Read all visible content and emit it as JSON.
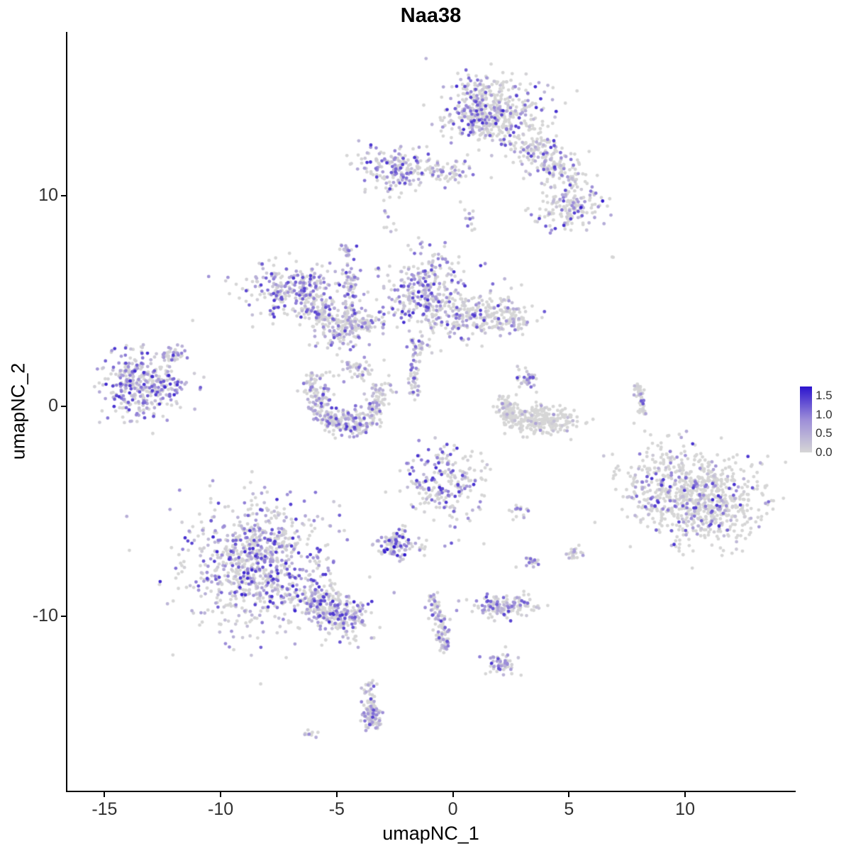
{
  "chart_data": {
    "type": "scatter",
    "title": "Naa38",
    "xlabel": "umapNC_1",
    "ylabel": "umapNC_2",
    "xlim": [
      -16.6,
      14.7
    ],
    "ylim": [
      -18.3,
      17.8
    ],
    "xticks": [
      -15,
      -10,
      -5,
      0,
      5,
      10
    ],
    "yticks": [
      -10,
      0,
      10
    ],
    "grid": false,
    "point_radius_px": 2.4,
    "color_scale": {
      "low": "#D6D6D6",
      "mid": "#9C8DD8",
      "high": "#2C14CE",
      "max": 1.75
    },
    "legend": {
      "position": "right",
      "labels": [
        "1.5",
        "1.0",
        "0.5",
        "0.0"
      ],
      "values": [
        1.5,
        1.0,
        0.5,
        0.0
      ],
      "scale_max": 1.75
    },
    "clusters": [
      {
        "name": "top-main",
        "cx": 1.8,
        "cy": 14.0,
        "sx": 1.0,
        "sy": 0.8,
        "n": 420,
        "expr_frac": 0.45,
        "expr_max": 1.6
      },
      {
        "name": "top-main-left",
        "cx": 0.9,
        "cy": 14.2,
        "sx": 0.35,
        "sy": 0.8,
        "n": 90,
        "expr_frac": 0.7,
        "expr_max": 1.5
      },
      {
        "name": "top-arm",
        "cx": 3.0,
        "cy": 12.8,
        "cx2": 5.3,
        "cy2": 10.6,
        "sx": 0.5,
        "sy": 0.45,
        "n": 230,
        "expr_frac": 0.4,
        "expr_max": 1.5
      },
      {
        "name": "top-arm-end",
        "cx": 5.0,
        "cy": 9.4,
        "sx": 0.75,
        "sy": 0.5,
        "n": 150,
        "expr_frac": 0.5,
        "expr_max": 1.7
      },
      {
        "name": "upper-left",
        "cx": -2.6,
        "cy": 11.3,
        "sx": 0.75,
        "sy": 0.55,
        "n": 170,
        "expr_frac": 0.65,
        "expr_max": 1.5
      },
      {
        "name": "upper-left-arm",
        "cx": -1.6,
        "cy": 11.2,
        "cx2": 0.5,
        "cy2": 11.2,
        "sx": 0.3,
        "sy": 0.3,
        "n": 80,
        "expr_frac": 0.45,
        "expr_max": 1.2
      },
      {
        "name": "upper-tiny",
        "cx": -2.8,
        "cy": 8.7,
        "sx": 0.15,
        "sy": 0.25,
        "n": 8,
        "expr_frac": 0.6,
        "expr_max": 1.0
      },
      {
        "name": "mid-top-sparse",
        "cx": 0.6,
        "cy": 9.0,
        "sx": 0.3,
        "sy": 0.4,
        "n": 12,
        "expr_frac": 0.5,
        "expr_max": 1.2
      },
      {
        "name": "wing-body",
        "cx": -6.9,
        "cy": 5.6,
        "sx": 1.15,
        "sy": 0.62,
        "n": 270,
        "expr_frac": 0.62,
        "expr_max": 1.5
      },
      {
        "name": "wing-lower-arm",
        "cx": -6.1,
        "cy": 4.7,
        "cx2": -4.7,
        "cy2": 3.4,
        "sx": 0.45,
        "sy": 0.45,
        "n": 170,
        "expr_frac": 0.55,
        "expr_max": 1.4
      },
      {
        "name": "wing-right-arm",
        "cx": -4.6,
        "cy": 3.6,
        "cx2": -3.2,
        "cy2": 4.2,
        "sx": 0.33,
        "sy": 0.33,
        "n": 90,
        "expr_frac": 0.5,
        "expr_max": 1.3
      },
      {
        "name": "thin-strip",
        "cx": -4.55,
        "cy": 7.7,
        "cx2": -4.3,
        "cy2": 3.9,
        "sx": 0.16,
        "sy": 0.16,
        "n": 85,
        "expr_frac": 0.62,
        "expr_max": 1.5
      },
      {
        "name": "center-upper",
        "cx": -1.2,
        "cy": 5.5,
        "sx": 0.85,
        "sy": 0.95,
        "n": 300,
        "expr_frac": 0.62,
        "expr_max": 1.6
      },
      {
        "name": "center-upper-right",
        "cx": 0.9,
        "cy": 4.3,
        "sx": 1.05,
        "sy": 0.55,
        "n": 210,
        "expr_frac": 0.45,
        "expr_max": 1.5
      },
      {
        "name": "center-upper-tail",
        "cx": 2.4,
        "cy": 4.1,
        "sx": 0.5,
        "sy": 0.4,
        "n": 70,
        "expr_frac": 0.45,
        "expr_max": 1.3
      },
      {
        "name": "center-below-bits",
        "cx": -1.4,
        "cy": 2.7,
        "sx": 0.25,
        "sy": 0.45,
        "n": 35,
        "expr_frac": 0.5,
        "expr_max": 1.2
      },
      {
        "name": "far-left",
        "cx": -13.3,
        "cy": 1.0,
        "sx": 0.9,
        "sy": 0.85,
        "n": 380,
        "expr_frac": 0.68,
        "expr_max": 1.6
      },
      {
        "name": "far-left-arm",
        "cx": -12.3,
        "cy": 2.3,
        "cx2": -11.6,
        "cy2": 2.6,
        "sx": 0.18,
        "sy": 0.18,
        "n": 25,
        "expr_frac": 0.5,
        "expr_max": 1.2
      },
      {
        "name": "crescent-left",
        "cx": -6.2,
        "cy": 1.5,
        "cx2": -5.5,
        "cy2": -0.5,
        "sx": 0.3,
        "sy": 0.3,
        "n": 110,
        "expr_frac": 0.6,
        "expr_max": 1.5
      },
      {
        "name": "crescent-bottom",
        "cx": -5.5,
        "cy": -0.6,
        "cx2": -3.7,
        "cy2": -0.9,
        "sx": 0.3,
        "sy": 0.3,
        "n": 150,
        "expr_frac": 0.6,
        "expr_max": 1.5
      },
      {
        "name": "crescent-right",
        "cx": -3.7,
        "cy": -0.8,
        "cx2": -3.0,
        "cy2": 1.0,
        "sx": 0.26,
        "sy": 0.26,
        "n": 100,
        "expr_frac": 0.55,
        "expr_max": 1.4
      },
      {
        "name": "crescent-top",
        "cx": -4.1,
        "cy": 1.7,
        "sx": 0.4,
        "sy": 0.3,
        "n": 50,
        "expr_frac": 0.5,
        "expr_max": 1.2
      },
      {
        "name": "small-strip",
        "cx": -1.75,
        "cy": 1.95,
        "cx2": -1.6,
        "cy2": 0.5,
        "sx": 0.1,
        "sy": 0.1,
        "n": 40,
        "expr_frac": 0.5,
        "expr_max": 1.3
      },
      {
        "name": "hook-top",
        "cx": 3.15,
        "cy": 1.25,
        "sx": 0.3,
        "sy": 0.28,
        "n": 35,
        "expr_frac": 0.65,
        "expr_max": 1.5
      },
      {
        "name": "hook-left",
        "cx": 2.2,
        "cy": 0.3,
        "cx2": 2.5,
        "cy2": -0.7,
        "sx": 0.22,
        "sy": 0.22,
        "n": 90,
        "expr_frac": 0.15,
        "expr_max": 1.0
      },
      {
        "name": "hook-body",
        "cx": 3.9,
        "cy": -0.65,
        "sx": 0.75,
        "sy": 0.33,
        "n": 240,
        "expr_frac": 0.07,
        "expr_max": 1.0
      },
      {
        "name": "right-strip",
        "cx": 7.95,
        "cy": 1.1,
        "cx2": 8.2,
        "cy2": -0.5,
        "sx": 0.12,
        "sy": 0.12,
        "n": 50,
        "expr_frac": 0.4,
        "expr_max": 1.4
      },
      {
        "name": "center-bottom",
        "cx": -0.3,
        "cy": -3.7,
        "sx": 0.85,
        "sy": 0.95,
        "n": 230,
        "expr_frac": 0.55,
        "expr_max": 1.6
      },
      {
        "name": "small-pair",
        "cx": 2.85,
        "cy": -4.9,
        "sx": 0.22,
        "sy": 0.16,
        "n": 16,
        "expr_frac": 0.6,
        "expr_max": 1.3
      },
      {
        "name": "right-big-a",
        "cx": 9.6,
        "cy": -3.9,
        "sx": 1.2,
        "sy": 1.1,
        "n": 420,
        "expr_frac": 0.3,
        "expr_max": 1.6
      },
      {
        "name": "right-big-b",
        "cx": 11.3,
        "cy": -4.7,
        "sx": 1.1,
        "sy": 1.05,
        "n": 400,
        "expr_frac": 0.28,
        "expr_max": 1.6
      },
      {
        "name": "dark-knot",
        "cx": -2.5,
        "cy": -6.6,
        "sx": 0.4,
        "sy": 0.33,
        "n": 90,
        "expr_frac": 0.75,
        "expr_max": 1.8
      },
      {
        "name": "dark-knot-tail",
        "cx": -2.2,
        "cy": -5.7,
        "cx2": -2.4,
        "cy2": -6.3,
        "sx": 0.12,
        "sy": 0.12,
        "n": 15,
        "expr_frac": 0.5,
        "expr_max": 1.2
      },
      {
        "name": "tiny-bit",
        "cx": -1.3,
        "cy": -6.8,
        "sx": 0.12,
        "sy": 0.12,
        "n": 8,
        "expr_frac": 0.5,
        "expr_max": 1.0
      },
      {
        "name": "bottom-left-main",
        "cx": -8.5,
        "cy": -7.5,
        "sx": 1.55,
        "sy": 1.45,
        "n": 850,
        "expr_frac": 0.62,
        "expr_max": 1.6
      },
      {
        "name": "bottom-left-arm",
        "cx": -6.5,
        "cy": -8.9,
        "cx2": -4.2,
        "cy2": -10.5,
        "sx": 0.5,
        "sy": 0.5,
        "n": 330,
        "expr_frac": 0.58,
        "expr_max": 1.6
      },
      {
        "name": "pair-a",
        "cx": 3.45,
        "cy": -7.45,
        "sx": 0.2,
        "sy": 0.15,
        "n": 18,
        "expr_frac": 0.5,
        "expr_max": 1.2
      },
      {
        "name": "pair-b",
        "cx": 5.15,
        "cy": -7.0,
        "sx": 0.25,
        "sy": 0.18,
        "n": 22,
        "expr_frac": 0.45,
        "expr_max": 1.2
      },
      {
        "name": "small-horizontal",
        "cx": 2.3,
        "cy": -9.5,
        "sx": 0.75,
        "sy": 0.3,
        "n": 130,
        "expr_frac": 0.6,
        "expr_max": 1.4
      },
      {
        "name": "strand-vertical",
        "cx": -0.9,
        "cy": -8.9,
        "cx2": -0.25,
        "cy2": -11.7,
        "sx": 0.18,
        "sy": 0.18,
        "n": 105,
        "expr_frac": 0.55,
        "expr_max": 1.5
      },
      {
        "name": "strand-end-blob",
        "cx": 2.1,
        "cy": -12.3,
        "sx": 0.35,
        "sy": 0.3,
        "n": 50,
        "expr_frac": 0.6,
        "expr_max": 1.5
      },
      {
        "name": "bottom-strand",
        "cx": -3.7,
        "cy": -13.1,
        "cx2": -3.4,
        "cy2": -15.4,
        "sx": 0.16,
        "sy": 0.16,
        "n": 75,
        "expr_frac": 0.55,
        "expr_max": 1.4
      },
      {
        "name": "bottom-dark-blob",
        "cx": -3.5,
        "cy": -14.8,
        "sx": 0.22,
        "sy": 0.3,
        "n": 40,
        "expr_frac": 0.75,
        "expr_max": 1.6
      },
      {
        "name": "tiny-bottom",
        "cx": -6.2,
        "cy": -15.6,
        "sx": 0.18,
        "sy": 0.12,
        "n": 10,
        "expr_frac": 0.4,
        "expr_max": 1.0
      },
      {
        "name": "isolated-right",
        "cx": 6.8,
        "cy": 7.0,
        "sx": 0.06,
        "sy": 0.06,
        "n": 2,
        "expr_frac": 0.0,
        "expr_max": 0.0
      },
      {
        "name": "isolated-left",
        "cx": -10.5,
        "cy": 6.2,
        "sx": 0.03,
        "sy": 0.03,
        "n": 1,
        "expr_frac": 1.0,
        "expr_max": 1.2
      }
    ]
  }
}
